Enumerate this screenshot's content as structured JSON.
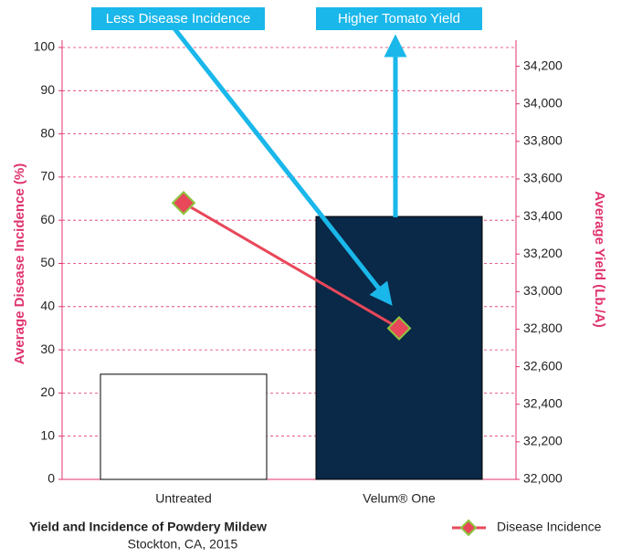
{
  "chart_data": {
    "type": "bar-line",
    "title": "Yield and Incidence of Powdery Mildew",
    "subtitle": "Stockton, CA, 2015",
    "y_label": "Average Disease Incidence (%)",
    "y2_label": "Average Yield (Lb./A)",
    "categories": [
      "Untreated",
      "Velum® One"
    ],
    "series": [
      {
        "type": "bar",
        "axis": "y2",
        "colors": [
          "#ffffff",
          "#0a2847"
        ],
        "values": [
          32560,
          33400
        ]
      },
      {
        "type": "line",
        "name": "Disease Incidence",
        "color": "#e8485a",
        "marker_edge": "#8dc63f",
        "values": [
          64,
          35
        ]
      }
    ],
    "annotations": [
      "Less Disease Incidence",
      "Higher Tomato Yield"
    ],
    "ylim": [
      0,
      100
    ],
    "yticks": [
      0,
      10,
      20,
      30,
      40,
      50,
      60,
      70,
      80,
      90,
      100
    ],
    "y2lim": [
      32000,
      34300
    ],
    "y2ticks": [
      {
        "value": 32000,
        "label": "32,000"
      },
      {
        "value": 32200,
        "label": "32,200"
      },
      {
        "value": 32400,
        "label": "32,400"
      },
      {
        "value": 32600,
        "label": "32,600"
      },
      {
        "value": 32800,
        "label": "32,800"
      },
      {
        "value": 33000,
        "label": "33,000"
      },
      {
        "value": 33200,
        "label": "33,200"
      },
      {
        "value": 33400,
        "label": "33,400"
      },
      {
        "value": 33600,
        "label": "33,600"
      },
      {
        "value": 33800,
        "label": "33,800"
      },
      {
        "value": 34000,
        "label": "34,000"
      },
      {
        "value": 34200,
        "label": "34,200"
      }
    ],
    "grid": true,
    "axis_color": "#e0336e",
    "annotation_color": "#1ab7ea"
  }
}
